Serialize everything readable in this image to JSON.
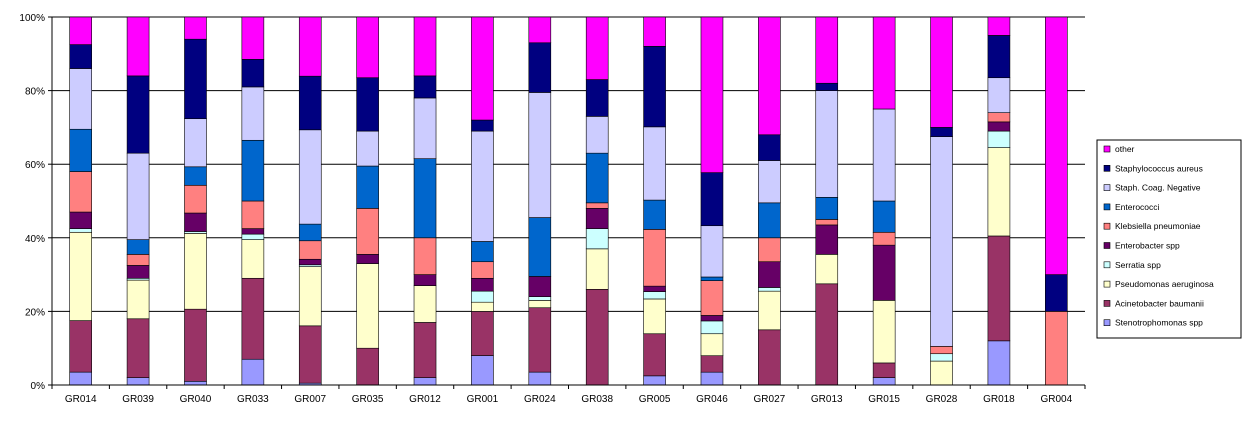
{
  "chart_data": {
    "type": "bar",
    "stacked": true,
    "percent_stacked": true,
    "categories": [
      "GR014",
      "GR039",
      "GR040",
      "GR033",
      "GR007",
      "GR035",
      "GR012",
      "GR001",
      "GR024",
      "GR038",
      "GR005",
      "GR046",
      "GR027",
      "GR013",
      "GR015",
      "GR028",
      "GR018",
      "GR004"
    ],
    "ylim": [
      0,
      100
    ],
    "yticks": [
      "0%",
      "20%",
      "40%",
      "60%",
      "80%",
      "100%"
    ],
    "grid": true,
    "legend_position": "right",
    "series": [
      {
        "name": "Stenotrophomonas spp",
        "color": "#9999ff",
        "values": [
          3.5,
          2,
          1,
          7,
          0.5,
          0,
          2,
          8,
          3.5,
          0,
          2.5,
          3.5,
          0,
          0,
          2,
          0,
          12,
          0
        ]
      },
      {
        "name": "Acinetobacter baumanii",
        "color": "#993366",
        "values": [
          14,
          16,
          19.5,
          22,
          15.5,
          10,
          15,
          12,
          17.5,
          26,
          11.5,
          4.5,
          15,
          27.5,
          4,
          0,
          28.5,
          0
        ]
      },
      {
        "name": "Pseudomonas aeruginosa",
        "color": "#ffffcc",
        "values": [
          24,
          10.5,
          20.5,
          10.5,
          16,
          23,
          10,
          2.5,
          2,
          11,
          9.5,
          6,
          10.5,
          8,
          17,
          6.5,
          24,
          0
        ]
      },
      {
        "name": "Serratia spp",
        "color": "#ccffff",
        "values": [
          1,
          0.5,
          0.5,
          1.5,
          0.5,
          0,
          0,
          3,
          1,
          5.5,
          2,
          3.5,
          1,
          0,
          0,
          2,
          4.5,
          0
        ]
      },
      {
        "name": "Enterobacter spp",
        "color": "#660066",
        "values": [
          4.5,
          3.5,
          5,
          1.5,
          1.5,
          2.5,
          3,
          3.5,
          5.5,
          5.5,
          1.5,
          1.5,
          7,
          8,
          15,
          0,
          2.5,
          0
        ]
      },
      {
        "name": "Klebsiella pneumoniae",
        "color": "#ff8080",
        "values": [
          11,
          3,
          7.5,
          7.5,
          5,
          12.5,
          10,
          4.5,
          0,
          1.5,
          15.5,
          9.5,
          6.5,
          1.5,
          3.5,
          2,
          2.5,
          20
        ]
      },
      {
        "name": "Enterococci",
        "color": "#0066cc",
        "values": [
          11.5,
          4,
          5,
          16.5,
          4.5,
          11.5,
          21.5,
          5.5,
          16,
          13.5,
          8,
          1,
          9.5,
          6,
          8.5,
          0,
          0,
          0
        ]
      },
      {
        "name": "Staph. Coag. Negative",
        "color": "#ccccff",
        "values": [
          16.5,
          23.5,
          13,
          14.5,
          25.5,
          9.5,
          16.5,
          30,
          34,
          10,
          20,
          14,
          11.5,
          29,
          25,
          57,
          9.5,
          0
        ]
      },
      {
        "name": "Staphylococcus aureus",
        "color": "#000080",
        "values": [
          6.5,
          21,
          21.5,
          7.5,
          14.5,
          14.5,
          6,
          3,
          13.5,
          10,
          22,
          14.5,
          7,
          2,
          0,
          2.5,
          11.5,
          10
        ]
      },
      {
        "name": "other",
        "color": "#ff00ff",
        "values": [
          7.5,
          16,
          6,
          11.5,
          16,
          16.5,
          16,
          28,
          7,
          17,
          8,
          42.5,
          32,
          18,
          25,
          30,
          5,
          70
        ]
      }
    ]
  }
}
